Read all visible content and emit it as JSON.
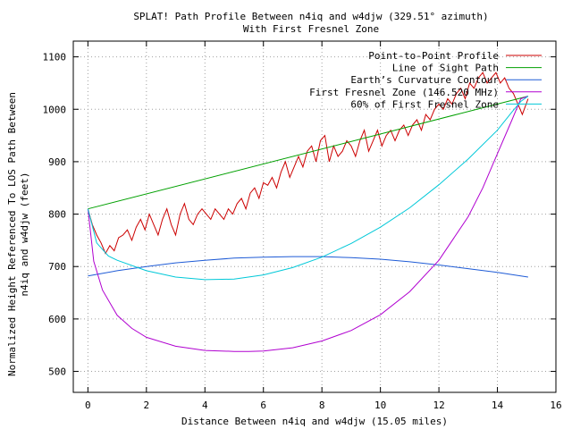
{
  "chart_data": {
    "type": "line",
    "title_line1": "SPLAT! Path Profile Between n4iq and w4djw (329.51° azimuth)",
    "title_line2": "With First Fresnel Zone",
    "xlabel": "Distance Between n4iq and w4djw (15.05 miles)",
    "ylabel_line1": "Normalized Height Referenced To LOS Path Between",
    "ylabel_line2": "n4iq and w4djw (feet)",
    "xlim": [
      -0.5,
      16
    ],
    "ylim": [
      460,
      1130
    ],
    "x_ticks": [
      0,
      2,
      4,
      6,
      8,
      10,
      12,
      14,
      16
    ],
    "y_ticks": [
      500,
      600,
      700,
      800,
      900,
      1000,
      1100
    ],
    "grid": true,
    "legend_position": "top-right",
    "series": [
      {
        "name": "Point-to-Point Profile",
        "color": "#cc0000",
        "x": [
          0,
          0.15,
          0.3,
          0.45,
          0.6,
          0.75,
          0.9,
          1.05,
          1.2,
          1.35,
          1.5,
          1.65,
          1.8,
          1.95,
          2.1,
          2.25,
          2.4,
          2.55,
          2.7,
          2.85,
          3.0,
          3.15,
          3.3,
          3.45,
          3.6,
          3.75,
          3.9,
          4.05,
          4.2,
          4.35,
          4.5,
          4.65,
          4.8,
          4.95,
          5.1,
          5.25,
          5.4,
          5.55,
          5.7,
          5.85,
          6.0,
          6.15,
          6.3,
          6.45,
          6.6,
          6.75,
          6.9,
          7.05,
          7.2,
          7.35,
          7.5,
          7.65,
          7.8,
          7.95,
          8.1,
          8.25,
          8.4,
          8.55,
          8.7,
          8.85,
          9.0,
          9.15,
          9.3,
          9.45,
          9.6,
          9.75,
          9.9,
          10.05,
          10.2,
          10.35,
          10.5,
          10.65,
          10.8,
          10.95,
          11.1,
          11.25,
          11.4,
          11.55,
          11.7,
          11.85,
          12.0,
          12.15,
          12.3,
          12.45,
          12.6,
          12.75,
          12.9,
          13.05,
          13.2,
          13.35,
          13.5,
          13.65,
          13.8,
          13.95,
          14.1,
          14.25,
          14.4,
          14.55,
          14.7,
          14.85,
          15.05
        ],
        "values": [
          810,
          780,
          760,
          745,
          725,
          740,
          730,
          755,
          760,
          770,
          750,
          775,
          790,
          770,
          800,
          780,
          760,
          790,
          810,
          780,
          760,
          800,
          820,
          790,
          780,
          800,
          810,
          800,
          790,
          810,
          800,
          790,
          810,
          800,
          820,
          830,
          810,
          840,
          850,
          830,
          860,
          855,
          870,
          850,
          880,
          900,
          870,
          890,
          910,
          890,
          920,
          930,
          900,
          940,
          950,
          900,
          930,
          910,
          920,
          940,
          930,
          910,
          940,
          960,
          920,
          940,
          960,
          930,
          950,
          960,
          940,
          960,
          970,
          950,
          970,
          980,
          960,
          990,
          980,
          1000,
          1010,
          1000,
          1020,
          1010,
          1030,
          1040,
          1020,
          1050,
          1040,
          1060,
          1070,
          1050,
          1060,
          1070,
          1050,
          1060,
          1040,
          1030,
          1010,
          990,
          1020
        ]
      },
      {
        "name": "Line of Sight Path",
        "color": "#00a000",
        "x": [
          0,
          15.05
        ],
        "values": [
          810,
          1025
        ]
      },
      {
        "name": "Earth’s Curvature Contour",
        "color": "#1e5bd6",
        "x": [
          0,
          1,
          2,
          3,
          4,
          5,
          6,
          7,
          7.5,
          8,
          9,
          10,
          11,
          12,
          13,
          14,
          15.05
        ],
        "values": [
          682,
          692,
          700,
          707,
          712,
          716,
          718,
          719,
          719,
          719,
          717,
          714,
          709,
          703,
          696,
          689,
          680
        ]
      },
      {
        "name": "First Fresnel Zone (146.520 MHz)",
        "color": "#b000d0",
        "x": [
          0,
          0.2,
          0.5,
          1,
          1.5,
          2,
          3,
          4,
          5,
          5.5,
          6,
          7,
          8,
          9,
          10,
          11,
          12,
          13,
          13.5,
          14,
          14.5,
          14.8,
          15.05
        ],
        "values": [
          810,
          710,
          655,
          607,
          582,
          565,
          548,
          540,
          538,
          538,
          539,
          545,
          558,
          578,
          608,
          652,
          712,
          795,
          850,
          915,
          980,
          1020,
          1025
        ]
      },
      {
        "name": "60% of First Fresnel Zone",
        "color": "#00c8d8",
        "x": [
          0,
          0.3,
          0.7,
          1,
          2,
          3,
          4,
          5,
          6,
          7,
          8,
          9,
          10,
          11,
          12,
          13,
          14,
          14.5,
          14.8,
          15.05
        ],
        "values": [
          810,
          745,
          720,
          712,
          692,
          680,
          675,
          676,
          684,
          698,
          718,
          744,
          775,
          812,
          856,
          905,
          960,
          995,
          1015,
          1025
        ]
      }
    ]
  }
}
